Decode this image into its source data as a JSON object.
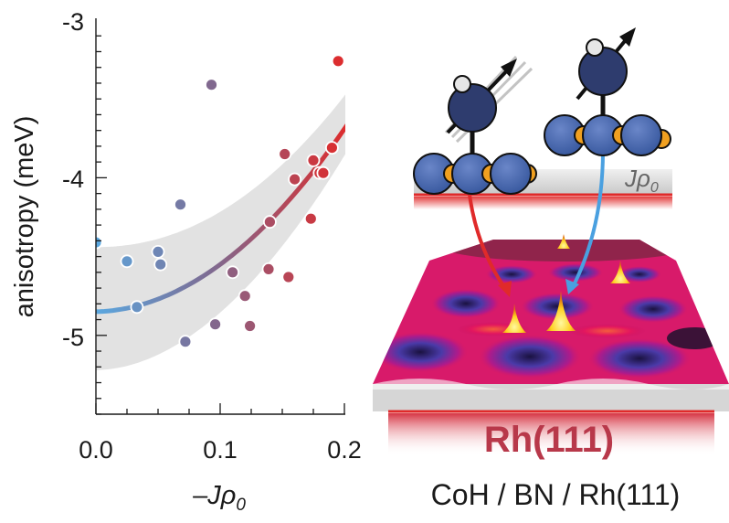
{
  "chart_data": {
    "type": "scatter",
    "xlabel_minus": "–",
    "xlabel_J": "J",
    "xlabel_rho": "ρ",
    "xlabel_sub": "0",
    "ylabel": "anisotropy (meV)",
    "xlim": [
      0.0,
      0.2
    ],
    "ylim": [
      -5.5,
      -3.0
    ],
    "x_ticks": [
      "0.0",
      "0.1",
      "0.2"
    ],
    "y_ticks": [
      "-3",
      "-4",
      "-5"
    ],
    "grid": false,
    "points": [
      {
        "x": 0.0,
        "y": -4.41
      },
      {
        "x": 0.025,
        "y": -4.53
      },
      {
        "x": 0.033,
        "y": -4.82
      },
      {
        "x": 0.05,
        "y": -4.47
      },
      {
        "x": 0.052,
        "y": -4.55
      },
      {
        "x": 0.068,
        "y": -4.17
      },
      {
        "x": 0.072,
        "y": -5.04
      },
      {
        "x": 0.093,
        "y": -3.41
      },
      {
        "x": 0.096,
        "y": -4.93
      },
      {
        "x": 0.11,
        "y": -4.6
      },
      {
        "x": 0.12,
        "y": -4.75
      },
      {
        "x": 0.124,
        "y": -4.94
      },
      {
        "x": 0.139,
        "y": -4.58
      },
      {
        "x": 0.14,
        "y": -4.28
      },
      {
        "x": 0.152,
        "y": -3.85
      },
      {
        "x": 0.155,
        "y": -4.63
      },
      {
        "x": 0.16,
        "y": -4.01
      },
      {
        "x": 0.173,
        "y": -4.26
      },
      {
        "x": 0.175,
        "y": -3.89
      },
      {
        "x": 0.18,
        "y": -3.97
      },
      {
        "x": 0.183,
        "y": -3.97
      },
      {
        "x": 0.19,
        "y": -3.81
      },
      {
        "x": 0.195,
        "y": -3.26
      }
    ],
    "fit": {
      "a": -4.85,
      "b": 0.2,
      "c": 28.0
    },
    "band": {
      "lower0": -5.22,
      "lower1": -3.86,
      "upper0": -4.44,
      "upper1": -3.48
    },
    "colors": {
      "low": "#5ba8e0",
      "high": "#e02a2a",
      "band": "#e2e2e2"
    }
  },
  "illustration": {
    "jrho_J": "J",
    "jrho_rho": "ρ",
    "jrho_sub": "0",
    "substrate_label": "Rh(111)",
    "caption": "CoH / BN / Rh(111)"
  }
}
